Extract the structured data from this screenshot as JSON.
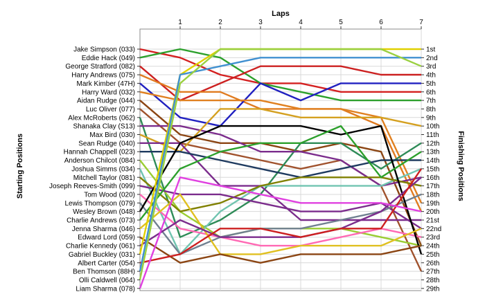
{
  "chart_data": {
    "type": "line",
    "title": "Laps",
    "ylabel_left": "Starting Positions",
    "ylabel_right": "Finishing Positions",
    "x": [
      0,
      1,
      2,
      3,
      4,
      5,
      6,
      7
    ],
    "x_tick_labels": [
      "1",
      "2",
      "3",
      "4",
      "5",
      "6",
      "7"
    ],
    "y_range": [
      1,
      29
    ],
    "finishing_positions": [
      "1st",
      "2nd",
      "3rd",
      "4th",
      "5th",
      "6th",
      "7th",
      "8th",
      "9th",
      "10th",
      "11th",
      "12th",
      "13th",
      "14th",
      "15th",
      "16th",
      "17th",
      "18th",
      "19th",
      "20th",
      "21st",
      "22nd",
      "23rd",
      "24th",
      "25th",
      "26th",
      "27th",
      "28th",
      "29th"
    ],
    "grid": true,
    "series": [
      {
        "name": "Jake Simpson (033)",
        "color": "#d42020",
        "positions": [
          1,
          2,
          4,
          5,
          5,
          6,
          6,
          6
        ]
      },
      {
        "name": "Eddie Hack (049)",
        "color": "#2ca02c",
        "positions": [
          2,
          1,
          2,
          5,
          6,
          7,
          7,
          7
        ]
      },
      {
        "name": "George Stratford (082)",
        "color": "#cc2020",
        "positions": [
          3,
          7,
          5,
          3,
          3,
          3,
          4,
          4
        ]
      },
      {
        "name": "Harry Andrews (075)",
        "color": "#e07b20",
        "positions": [
          4,
          6,
          6,
          8,
          8,
          8,
          10,
          20
        ]
      },
      {
        "name": "Mark Kimber (47H)",
        "color": "#2020c0",
        "positions": [
          5,
          9,
          10,
          5,
          7,
          5,
          5,
          5
        ]
      },
      {
        "name": "Harry Ward (032)",
        "color": "#e08020",
        "positions": [
          6,
          7,
          7,
          7,
          8,
          8,
          9,
          19
        ]
      },
      {
        "name": "Aidan Rudge (044)",
        "color": "#8b4513",
        "positions": [
          7,
          11,
          12,
          12,
          13,
          12,
          13,
          24
        ]
      },
      {
        "name": "Luc Oliver (077)",
        "color": "#a0522d",
        "positions": [
          8,
          12,
          13,
          14,
          15,
          14,
          17,
          27
        ]
      },
      {
        "name": "Alex McRoberts (062)",
        "color": "#2e8b57",
        "positions": [
          9,
          23,
          21,
          18,
          12,
          12,
          15,
          12
        ]
      },
      {
        "name": "Shanaka Clay (S13)",
        "color": "#7b2c8c",
        "positions": [
          10,
          10,
          11,
          13,
          13,
          14,
          17,
          16
        ]
      },
      {
        "name": "Max Bird (030)",
        "color": "#d4a020",
        "positions": [
          11,
          13,
          8,
          8,
          9,
          9,
          9,
          10
        ]
      },
      {
        "name": "Sean Rudge (040)",
        "color": "#7b2c8c",
        "positions": [
          12,
          12,
          17,
          17,
          21,
          21,
          21,
          21
        ]
      },
      {
        "name": "Hannah Chappell (023)",
        "color": "#1e3a5f",
        "positions": [
          13,
          13,
          14,
          15,
          16,
          15,
          14,
          14
        ]
      },
      {
        "name": "Anderson Chilcot (084)",
        "color": "#9acd32",
        "positions": [
          14,
          20,
          23,
          22,
          22,
          22,
          23,
          24
        ]
      },
      {
        "name": "Joshua Simms (034)",
        "color": "#70c4b0",
        "positions": [
          15,
          25,
          20,
          17,
          17,
          17,
          17,
          15
        ]
      },
      {
        "name": "Mitchell Taylor (081)",
        "color": "#808000",
        "positions": [
          16,
          20,
          19,
          17,
          16,
          16,
          16,
          17
        ]
      },
      {
        "name": "Joseph Reeves-Smith (099)",
        "color": "#7b2c8c",
        "positions": [
          17,
          18,
          18,
          19,
          20,
          20,
          19,
          22
        ]
      },
      {
        "name": "Tom Wood (020)",
        "color": "#ff69b4",
        "positions": [
          18,
          22,
          23,
          24,
          24,
          23,
          22,
          23
        ]
      },
      {
        "name": "Lewis Thompson (079)",
        "color": "#708090",
        "positions": [
          19,
          25,
          23,
          22,
          22,
          21,
          20,
          18
        ]
      },
      {
        "name": "Wesley Brown (048)",
        "color": "#000000",
        "positions": [
          20,
          12,
          10,
          10,
          10,
          11,
          10,
          25
        ]
      },
      {
        "name": "Charlie Andrews (073)",
        "color": "#2ca02c",
        "positions": [
          21,
          15,
          13,
          12,
          12,
          10,
          16,
          13
        ]
      },
      {
        "name": "Jenna Sharma (046)",
        "color": "#e0c020",
        "positions": [
          22,
          18,
          25,
          25,
          24,
          24,
          24,
          22
        ]
      },
      {
        "name": "Edward Lord (059)",
        "color": "#8b4513",
        "positions": [
          23,
          26,
          25,
          26,
          25,
          25,
          25,
          24
        ]
      },
      {
        "name": "Charlie Kennedy (061)",
        "color": "#7b2c8c",
        "positions": [
          24,
          21,
          23,
          23,
          23,
          22,
          20,
          16
        ]
      },
      {
        "name": "Gabriel Buckley (031)",
        "color": "#e0d000",
        "positions": [
          25,
          4,
          1,
          1,
          1,
          1,
          1,
          1
        ]
      },
      {
        "name": "Albert Carter (054)",
        "color": "#cc2020",
        "positions": [
          26,
          25,
          22,
          22,
          23,
          22,
          22,
          15
        ]
      },
      {
        "name": "Ben Thomson (88H)",
        "color": "#4090d0",
        "positions": [
          27,
          4,
          3,
          2,
          2,
          2,
          2,
          2
        ]
      },
      {
        "name": "Olli Caldwell (064)",
        "color": "#9ad040",
        "positions": [
          28,
          5,
          1,
          1,
          1,
          1,
          1,
          3
        ]
      },
      {
        "name": "Liam Sharma (078)",
        "color": "#e040e0",
        "positions": [
          29,
          16,
          17,
          18,
          19,
          19,
          19,
          20
        ]
      }
    ]
  }
}
